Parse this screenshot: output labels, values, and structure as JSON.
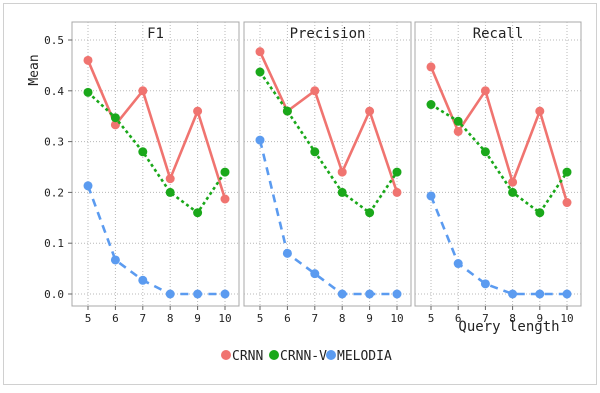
{
  "chart_data": [
    {
      "type": "line",
      "title": "F1",
      "x": [
        5,
        6,
        7,
        8,
        9,
        10
      ],
      "series": [
        {
          "name": "CRNN",
          "values": [
            0.46,
            0.333,
            0.4,
            0.227,
            0.36,
            0.187
          ]
        },
        {
          "name": "CRNN-V",
          "values": [
            0.397,
            0.347,
            0.28,
            0.2,
            0.16,
            0.24
          ]
        },
        {
          "name": "MELODIA",
          "values": [
            0.213,
            0.067,
            0.027,
            0.0,
            0.0,
            0.0
          ]
        }
      ]
    },
    {
      "type": "line",
      "title": "Precision",
      "x": [
        5,
        6,
        7,
        8,
        9,
        10
      ],
      "series": [
        {
          "name": "CRNN",
          "values": [
            0.477,
            0.36,
            0.4,
            0.24,
            0.36,
            0.2
          ]
        },
        {
          "name": "CRNN-V",
          "values": [
            0.437,
            0.36,
            0.28,
            0.2,
            0.16,
            0.24
          ]
        },
        {
          "name": "MELODIA",
          "values": [
            0.303,
            0.08,
            0.04,
            0.0,
            0.0,
            0.0
          ]
        }
      ]
    },
    {
      "type": "line",
      "title": "Recall",
      "x": [
        5,
        6,
        7,
        8,
        9,
        10
      ],
      "series": [
        {
          "name": "CRNN",
          "values": [
            0.447,
            0.32,
            0.4,
            0.22,
            0.36,
            0.18
          ]
        },
        {
          "name": "CRNN-V",
          "values": [
            0.373,
            0.34,
            0.28,
            0.2,
            0.16,
            0.24
          ]
        },
        {
          "name": "MELODIA",
          "values": [
            0.193,
            0.06,
            0.02,
            0.0,
            0.0,
            0.0
          ]
        }
      ]
    }
  ],
  "ylabel": "Mean",
  "xlabel": "Query length",
  "ylim": [
    0.0,
    0.5
  ],
  "yticks": [
    "0.0",
    "0.1",
    "0.2",
    "0.3",
    "0.4",
    "0.5"
  ],
  "xticks": [
    "5",
    "6",
    "7",
    "8",
    "9",
    "10"
  ],
  "grid": true,
  "legend_position": "bottom",
  "colors": {
    "CRNN": "#f07470",
    "CRNN-V": "#1aa81a",
    "MELODIA": "#5b9bf0"
  },
  "line_styles": {
    "CRNN": "solid",
    "CRNN-V": "dotted",
    "MELODIA": "dashed"
  }
}
